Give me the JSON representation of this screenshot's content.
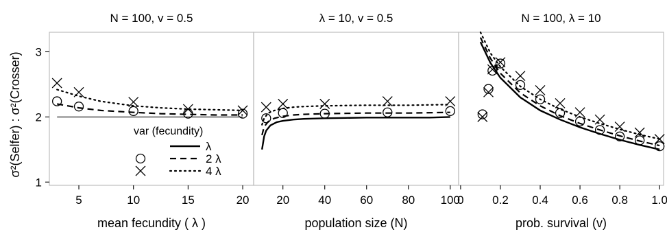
{
  "figure": {
    "ylabel_left": "σ²(Selfer)",
    "ylabel_sep": " : ",
    "ylabel_right": "σ²(Crosser)",
    "legend": {
      "title": "var (fecundity)",
      "entries": [
        {
          "label": "λ",
          "marker": "none",
          "line": "solid"
        },
        {
          "label": "2 λ",
          "marker": "circle",
          "line": "dashed"
        },
        {
          "label": "4 λ",
          "marker": "cross",
          "line": "dotted"
        }
      ]
    }
  },
  "chart_data": [
    {
      "type": "line",
      "title": "N = 100, v = 0.5",
      "xlabel": "mean fecundity ( λ )",
      "ylabel": "σ²(Selfer) : σ²(Crosser)",
      "xlim": [
        2.3,
        21.0
      ],
      "ylim": [
        0.95,
        3.3
      ],
      "xticks": [
        5,
        10,
        15,
        20
      ],
      "yticks": [
        1,
        2,
        3
      ],
      "show_yticks": true,
      "lines": [
        {
          "name": "λ",
          "style": "solid",
          "width": 1.1,
          "x": [
            3,
            20
          ],
          "y": [
            2.0,
            2.0
          ]
        },
        {
          "name": "2 λ",
          "style": "dashed",
          "x": [
            3,
            5,
            7,
            10,
            12.5,
            15,
            17.5,
            20
          ],
          "y": [
            2.2,
            2.14,
            2.1,
            2.07,
            2.05,
            2.04,
            2.03,
            2.03
          ]
        },
        {
          "name": "4 λ",
          "style": "dotted",
          "x": [
            3,
            5,
            7,
            10,
            12.5,
            15,
            17.5,
            20
          ],
          "y": [
            2.42,
            2.32,
            2.24,
            2.17,
            2.14,
            2.12,
            2.11,
            2.1
          ]
        }
      ],
      "points": [
        {
          "name": "2 λ",
          "marker": "circle",
          "x": [
            3,
            5,
            10,
            15,
            20
          ],
          "y": [
            2.24,
            2.16,
            2.09,
            2.05,
            2.05
          ]
        },
        {
          "name": "4 λ",
          "marker": "cross",
          "x": [
            3,
            5,
            10,
            15,
            20
          ],
          "y": [
            2.52,
            2.38,
            2.23,
            2.12,
            2.1
          ]
        }
      ]
    },
    {
      "type": "line",
      "title": "λ = 10, v = 0.5",
      "xlabel": "population size (N)",
      "xlim": [
        6.0,
        104.0
      ],
      "ylim": [
        0.95,
        3.3
      ],
      "xticks": [
        20,
        40,
        60,
        80,
        100
      ],
      "yticks": [
        1,
        2,
        3
      ],
      "show_yticks": false,
      "lines": [
        {
          "name": "λ",
          "style": "solid",
          "x": [
            10,
            11,
            12,
            14,
            17,
            20,
            25,
            30,
            40,
            50,
            60,
            70,
            80,
            90,
            100
          ],
          "y": [
            1.5,
            1.7,
            1.79,
            1.87,
            1.92,
            1.94,
            1.96,
            1.97,
            1.98,
            1.985,
            1.99,
            1.99,
            1.99,
            1.99,
            2.0
          ]
        },
        {
          "name": "2 λ",
          "style": "dashed",
          "x": [
            10,
            11,
            13,
            16,
            20,
            25,
            30,
            40,
            60,
            80,
            100
          ],
          "y": [
            1.72,
            1.85,
            1.93,
            1.98,
            2.01,
            2.03,
            2.04,
            2.05,
            2.06,
            2.06,
            2.07
          ]
        },
        {
          "name": "4 λ",
          "style": "dotted",
          "x": [
            10,
            11,
            13,
            16,
            20,
            25,
            30,
            40,
            60,
            80,
            100
          ],
          "y": [
            1.88,
            1.98,
            2.06,
            2.1,
            2.13,
            2.15,
            2.16,
            2.17,
            2.18,
            2.18,
            2.19
          ]
        }
      ],
      "points": [
        {
          "name": "2 λ",
          "marker": "circle",
          "x": [
            12,
            20,
            40,
            70,
            100
          ],
          "y": [
            1.98,
            2.06,
            2.05,
            2.07,
            2.09
          ]
        },
        {
          "name": "4 λ",
          "marker": "cross",
          "x": [
            12,
            20,
            40,
            70,
            100
          ],
          "y": [
            2.15,
            2.2,
            2.2,
            2.24,
            2.24
          ]
        }
      ]
    },
    {
      "type": "line",
      "title": "N = 100, λ = 10",
      "xlabel": "prob. survival (v)",
      "xlim": [
        -0.01,
        1.02
      ],
      "ylim": [
        0.95,
        3.3
      ],
      "xticks": [
        0,
        0.2,
        0.4,
        0.6,
        0.8,
        1.0
      ],
      "xticklabels": [
        "0",
        "0.2",
        "0.4",
        "0.6",
        "0.8",
        "1.0"
      ],
      "yticks": [
        1,
        2,
        3
      ],
      "show_yticks": false,
      "lines": [
        {
          "name": "λ",
          "style": "solid",
          "x": [
            0.1,
            0.15,
            0.2,
            0.3,
            0.4,
            0.5,
            0.6,
            0.7,
            0.8,
            0.9,
            1.0
          ],
          "y": [
            3.15,
            2.83,
            2.6,
            2.3,
            2.1,
            1.96,
            1.84,
            1.74,
            1.65,
            1.57,
            1.5
          ]
        },
        {
          "name": "2 λ",
          "style": "dashed",
          "x": [
            0.1,
            0.15,
            0.2,
            0.3,
            0.4,
            0.5,
            0.6,
            0.7,
            0.8,
            0.9,
            1.0
          ],
          "y": [
            3.22,
            2.9,
            2.67,
            2.37,
            2.17,
            2.02,
            1.9,
            1.8,
            1.71,
            1.63,
            1.56
          ]
        },
        {
          "name": "4 λ",
          "style": "dotted",
          "x": [
            0.1,
            0.15,
            0.2,
            0.3,
            0.4,
            0.5,
            0.6,
            0.7,
            0.8,
            0.9,
            1.0
          ],
          "y": [
            3.3,
            2.98,
            2.77,
            2.47,
            2.27,
            2.12,
            2.0,
            1.9,
            1.81,
            1.73,
            1.66
          ]
        }
      ],
      "points": [
        {
          "name": "2 λ",
          "marker": "circle",
          "x": [
            0.11,
            0.14,
            0.16,
            0.2,
            0.3,
            0.4,
            0.5,
            0.6,
            0.7,
            0.8,
            0.9,
            1.0
          ],
          "y": [
            2.04,
            2.43,
            2.71,
            2.82,
            2.49,
            2.27,
            2.06,
            1.93,
            1.8,
            1.7,
            1.64,
            1.55
          ]
        },
        {
          "name": "4 λ",
          "marker": "cross",
          "x": [
            0.11,
            0.14,
            0.16,
            0.2,
            0.3,
            0.4,
            0.5,
            0.6,
            0.7,
            0.8,
            0.9,
            1.0
          ],
          "y": [
            2.0,
            2.38,
            2.73,
            2.84,
            2.63,
            2.41,
            2.21,
            2.07,
            1.96,
            1.85,
            1.76,
            1.66
          ]
        }
      ]
    }
  ]
}
